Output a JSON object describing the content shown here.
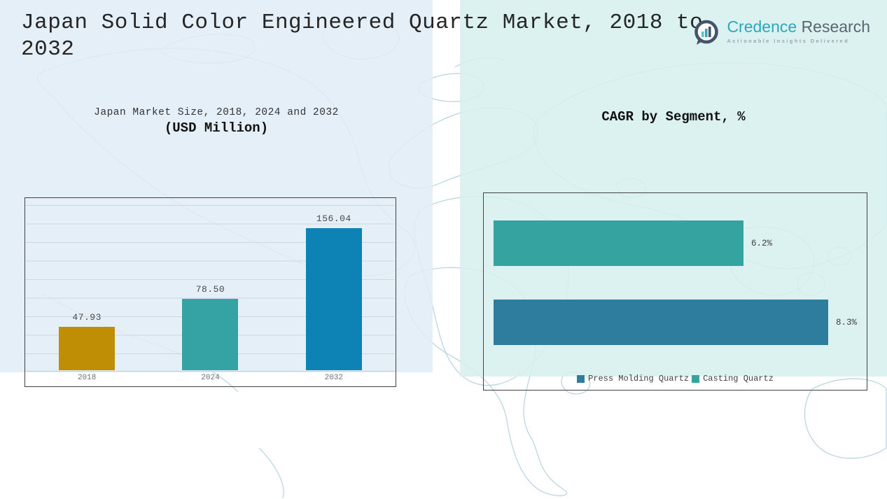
{
  "header": {
    "title": "Japan Solid Color Engineered Quartz Market, 2018 to 2032",
    "logo": {
      "brand_word1": "Credence",
      "brand_word2": "Research",
      "tagline": "Actionable Insights Delivered"
    }
  },
  "colors": {
    "left_panel_bg": "#E0ECF7",
    "right_panel_bg": "#D6F0EE",
    "gold": "#BF8E05",
    "teal": "#35A3A3",
    "blue": "#0C82B5",
    "steel_blue": "#2E7C9E",
    "brand_teal": "#2BA9BC",
    "brand_slate": "#5A6572"
  },
  "chart_data": [
    {
      "type": "bar",
      "title": "Japan Market Size, 2018, 2024 and 2032",
      "subtitle": "(USD Million)",
      "categories": [
        "2018",
        "2024",
        "2032"
      ],
      "values": [
        47.93,
        78.5,
        156.04
      ],
      "value_labels": [
        "47.93",
        "78.50",
        "156.04"
      ],
      "bar_colors": [
        "#BF8E05",
        "#35A3A3",
        "#0C82B5"
      ],
      "xlabel": "",
      "ylabel": "",
      "ylim": [
        0,
        170
      ],
      "grid": true,
      "legend_position": "none"
    },
    {
      "type": "bar",
      "orientation": "horizontal",
      "title": "CAGR by Segment, %",
      "bars": [
        {
          "name": "Casting Quartz",
          "value": 6.2,
          "label": "6.2%",
          "color": "#35A3A0"
        },
        {
          "name": "Press Molding Quartz",
          "value": 8.3,
          "label": "8.3%",
          "color": "#2E7C9E"
        }
      ],
      "xlim": [
        0,
        9.3
      ],
      "grid": false,
      "legend_position": "bottom",
      "legend": [
        {
          "label": "Press Molding Quartz",
          "color": "#2E7C9E"
        },
        {
          "label": "Casting Quartz",
          "color": "#35A3A0"
        }
      ]
    }
  ]
}
